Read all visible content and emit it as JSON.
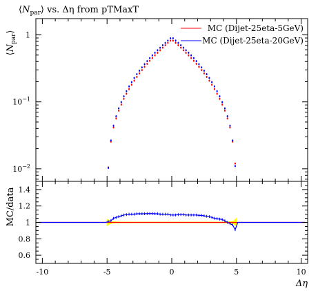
{
  "chart_data": [
    {
      "type": "scatter",
      "panel": "main",
      "title": "⟨N_par⟩ vs. Δη from pTMaxT",
      "title_text": {
        "pre": "⟨",
        "sym": "N",
        "sub": "par",
        "post": "⟩ vs. Δη from pTMaxT"
      },
      "ylabel": "⟨N_par⟩",
      "ylabel_text": {
        "pre": "⟨",
        "sym": "N",
        "sub": "par",
        "post": "⟩"
      },
      "xlim": [
        -10.5,
        10.5
      ],
      "ylim": [
        0.0065,
        1.75
      ],
      "yscale": "log",
      "grid": false,
      "legend": "top-right",
      "y_ticks": [
        {
          "value": 1,
          "label": "1"
        },
        {
          "value": 0.1,
          "label": "10⁻¹",
          "base": "10",
          "exp": "−1"
        },
        {
          "value": 0.01,
          "label": "10⁻²",
          "base": "10",
          "exp": "−2"
        }
      ],
      "series": [
        {
          "name": "MC (Dijet-25eta-5GeV)",
          "color": "#ff0000",
          "x": [
            -4.9,
            -4.7,
            -4.5,
            -4.3,
            -4.1,
            -3.9,
            -3.7,
            -3.5,
            -3.3,
            -3.1,
            -2.9,
            -2.7,
            -2.5,
            -2.3,
            -2.1,
            -1.9,
            -1.7,
            -1.5,
            -1.3,
            -1.1,
            -0.9,
            -0.7,
            -0.5,
            -0.3,
            -0.1,
            0.1,
            0.3,
            0.5,
            0.7,
            0.9,
            1.1,
            1.3,
            1.5,
            1.7,
            1.9,
            2.1,
            2.3,
            2.5,
            2.7,
            2.9,
            3.1,
            3.3,
            3.5,
            3.7,
            3.9,
            4.1,
            4.3,
            4.5,
            4.7,
            4.9
          ],
          "y": [
            0.0105,
            0.0255,
            0.0415,
            0.0565,
            0.074,
            0.091,
            0.111,
            0.132,
            0.155,
            0.18,
            0.207,
            0.236,
            0.266,
            0.298,
            0.333,
            0.37,
            0.41,
            0.45,
            0.495,
            0.54,
            0.59,
            0.645,
            0.7,
            0.76,
            0.82,
            0.82,
            0.76,
            0.7,
            0.645,
            0.59,
            0.54,
            0.495,
            0.45,
            0.41,
            0.37,
            0.333,
            0.298,
            0.266,
            0.236,
            0.207,
            0.18,
            0.155,
            0.132,
            0.111,
            0.091,
            0.074,
            0.0565,
            0.0415,
            0.0255,
            0.012
          ]
        },
        {
          "name": "MC (Dijet-25eta-20GeV)",
          "color": "#0000ff",
          "x": [
            -4.9,
            -4.7,
            -4.5,
            -4.3,
            -4.1,
            -3.9,
            -3.7,
            -3.5,
            -3.3,
            -3.1,
            -2.9,
            -2.7,
            -2.5,
            -2.3,
            -2.1,
            -1.9,
            -1.7,
            -1.5,
            -1.3,
            -1.1,
            -0.9,
            -0.7,
            -0.5,
            -0.3,
            -0.1,
            0.1,
            0.3,
            0.5,
            0.7,
            0.9,
            1.1,
            1.3,
            1.5,
            1.7,
            1.9,
            2.1,
            2.3,
            2.5,
            2.7,
            2.9,
            3.1,
            3.3,
            3.5,
            3.7,
            3.9,
            4.1,
            4.3,
            4.5,
            4.7,
            4.9
          ],
          "y": [
            0.0103,
            0.0265,
            0.044,
            0.061,
            0.08,
            0.099,
            0.121,
            0.144,
            0.17,
            0.197,
            0.227,
            0.259,
            0.292,
            0.327,
            0.365,
            0.406,
            0.45,
            0.494,
            0.542,
            0.59,
            0.643,
            0.701,
            0.759,
            0.822,
            0.89,
            0.89,
            0.822,
            0.759,
            0.701,
            0.643,
            0.59,
            0.542,
            0.494,
            0.45,
            0.406,
            0.365,
            0.327,
            0.292,
            0.259,
            0.227,
            0.197,
            0.17,
            0.144,
            0.121,
            0.099,
            0.08,
            0.061,
            0.044,
            0.0265,
            0.011
          ]
        }
      ]
    },
    {
      "type": "line",
      "panel": "ratio",
      "xlabel": "Δη",
      "ylabel": "MC/data",
      "xlim": [
        -10.5,
        10.5
      ],
      "ylim": [
        0.5,
        1.5
      ],
      "grid": false,
      "x_ticks": [
        {
          "value": -10,
          "label": "-10"
        },
        {
          "value": -5,
          "label": "-5"
        },
        {
          "value": 0,
          "label": "0"
        },
        {
          "value": 5,
          "label": "5"
        },
        {
          "value": 10,
          "label": "10"
        }
      ],
      "y_ticks": [
        {
          "value": 0.6,
          "label": "0.6"
        },
        {
          "value": 0.8,
          "label": "0.8"
        },
        {
          "value": 1.0,
          "label": "1"
        },
        {
          "value": 1.2,
          "label": "1.2"
        },
        {
          "value": 1.4,
          "label": "1.4"
        }
      ],
      "band": {
        "color": "#ffff00",
        "x": [
          -5.0,
          -4.8,
          -4.6,
          -4.0,
          0.0,
          4.0,
          4.6,
          4.8,
          5.0
        ],
        "halfwidth": [
          0.04,
          0.02,
          0.008,
          0.004,
          0.003,
          0.004,
          0.008,
          0.02,
          0.05
        ]
      },
      "series": [
        {
          "name": "MC (Dijet-25eta-5GeV)",
          "color": "#ff0000",
          "x": [
            -10.3,
            10.3
          ],
          "y": [
            1.0,
            1.0
          ]
        },
        {
          "name": "MC (Dijet-25eta-20GeV)",
          "color": "#0000ff",
          "x": [
            -10.3,
            -5.1,
            -4.9,
            -4.7,
            -4.5,
            -4.3,
            -4.1,
            -3.9,
            -3.7,
            -3.5,
            -3.3,
            -3.1,
            -2.9,
            -2.7,
            -2.5,
            -2.3,
            -2.1,
            -1.9,
            -1.7,
            -1.5,
            -1.3,
            -1.1,
            -0.9,
            -0.7,
            -0.5,
            -0.3,
            -0.1,
            0.1,
            0.3,
            0.5,
            0.7,
            0.9,
            1.1,
            1.3,
            1.5,
            1.7,
            1.9,
            2.1,
            2.3,
            2.5,
            2.7,
            2.9,
            3.1,
            3.3,
            3.5,
            3.7,
            3.9,
            4.1,
            4.3,
            4.5,
            4.7,
            4.9,
            5.1,
            10.3
          ],
          "y": [
            1.0,
            1.0,
            1.01,
            1.02,
            1.05,
            1.06,
            1.07,
            1.08,
            1.09,
            1.095,
            1.1,
            1.1,
            1.1,
            1.105,
            1.105,
            1.105,
            1.105,
            1.107,
            1.107,
            1.107,
            1.105,
            1.105,
            1.1,
            1.1,
            1.1,
            1.1,
            1.09,
            1.09,
            1.09,
            1.095,
            1.095,
            1.095,
            1.09,
            1.09,
            1.09,
            1.09,
            1.09,
            1.085,
            1.085,
            1.08,
            1.075,
            1.07,
            1.06,
            1.05,
            1.045,
            1.04,
            1.035,
            1.02,
            1.0,
            0.985,
            0.97,
            0.91,
            1.0,
            1.0
          ]
        }
      ]
    }
  ]
}
